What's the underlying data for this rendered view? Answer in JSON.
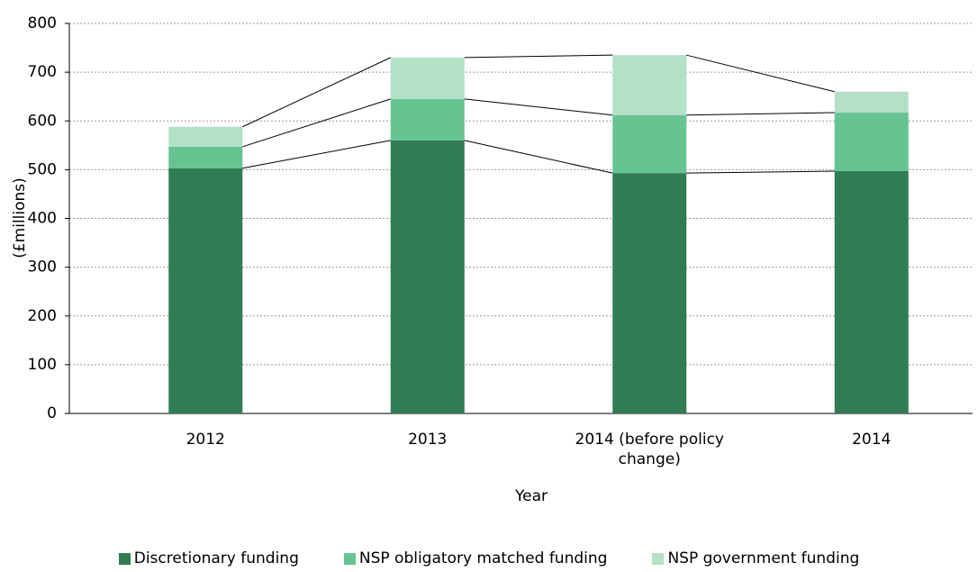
{
  "chart_data": {
    "type": "bar",
    "stacked": true,
    "x_label": "Year",
    "y_label": "(£millions)",
    "categories": [
      "2012",
      "2013",
      "2014 (before policy change)",
      "2014"
    ],
    "series": [
      {
        "name": "Discretionary funding",
        "color": "#317c52",
        "values": [
          503,
          560,
          493,
          497
        ]
      },
      {
        "name": "NSP obligatory matched funding",
        "color": "#66c492",
        "values": [
          44,
          85,
          119,
          120
        ]
      },
      {
        "name": "NSP government funding",
        "color": "#b3e0c7",
        "values": [
          41,
          85,
          123,
          43
        ]
      }
    ],
    "ylim": [
      0,
      800
    ],
    "yticks": [
      0,
      100,
      200,
      300,
      400,
      500,
      600,
      700,
      800
    ],
    "grid": true,
    "legend": "bottom"
  }
}
